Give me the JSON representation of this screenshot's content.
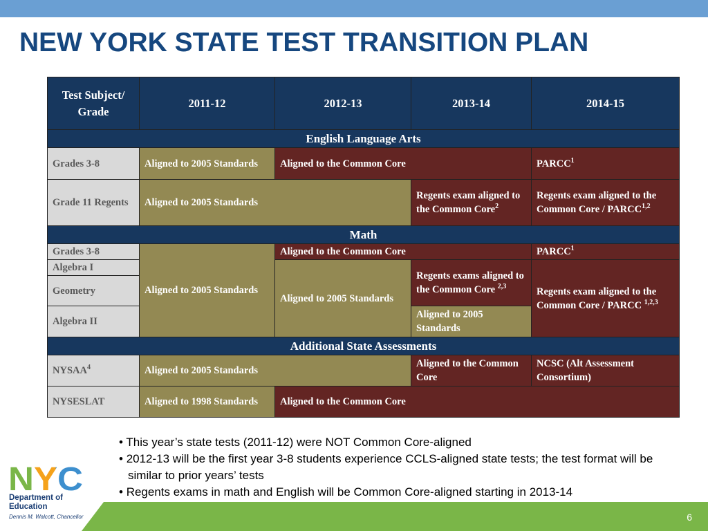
{
  "header": {
    "title": "NEW YORK STATE TEST TRANSITION PLAN"
  },
  "table": {
    "columns": [
      "Test Subject/ Grade",
      "2011-12",
      "2012-13",
      "2013-14",
      "2014-15"
    ],
    "sections": [
      {
        "title": "English Language Arts",
        "rows": [
          {
            "label": "Grades 3-8",
            "cells": [
              {
                "text": "Aligned to 2005 Standards"
              },
              {
                "text": "Aligned to the Common Core"
              },
              {
                "text": "PARCC",
                "sup": "1"
              }
            ]
          },
          {
            "label": "Grade 11 Regents",
            "cells": [
              {
                "text": "Aligned to 2005 Standards"
              },
              {
                "text": "Regents exam aligned to the Common Core",
                "sup": "2"
              },
              {
                "text": "Regents exam aligned to the Common Core / PARCC",
                "sup": "1,2"
              }
            ]
          }
        ]
      },
      {
        "title": "Math",
        "rows": [
          {
            "label": "Grades 3-8",
            "cells": [
              {
                "text": "Aligned to 2005 Standards"
              },
              {
                "text": "Aligned to the Common Core"
              },
              {
                "text": "PARCC",
                "sup": "1"
              }
            ]
          },
          {
            "label": "Algebra I",
            "cells": [
              {
                "text": "Aligned to 2005 Standards"
              },
              {
                "text": "Regents exams aligned to the Common Core",
                "sup": "2,3"
              },
              {
                "text": "Regents exam aligned to the Common Core / PARCC",
                "sup": "1,2,3"
              }
            ]
          },
          {
            "label": "Geometry"
          },
          {
            "label": "Algebra II",
            "cells": [
              {
                "text": "Aligned to 2005 Standards"
              }
            ]
          }
        ]
      },
      {
        "title": "Additional State Assessments",
        "rows": [
          {
            "label": "NYSAA",
            "label_sup": "4",
            "cells": [
              {
                "text": "Aligned to 2005 Standards"
              },
              {
                "text": "Aligned to the Common Core"
              },
              {
                "text": "NCSC (Alt Assessment Consortium)"
              }
            ]
          },
          {
            "label": "NYSESLAT",
            "cells": [
              {
                "text": "Aligned to 1998 Standards"
              },
              {
                "text": "Aligned to the Common Core"
              }
            ]
          }
        ]
      }
    ]
  },
  "notes": [
    "This year’s state tests (2011-12) were NOT Common Core-aligned",
    "2012-13 will be the first year 3-8 students experience CCLS-aligned state tests; the test format will be similar to prior years’ tests",
    "Regents exams in math and English will be Common Core-aligned starting in 2013-14"
  ],
  "footer": {
    "logo": "NYC",
    "department": [
      "Department of",
      "Education"
    ],
    "chancellor": "Dennis M. Walcott, Chancellor",
    "page": "6"
  }
}
